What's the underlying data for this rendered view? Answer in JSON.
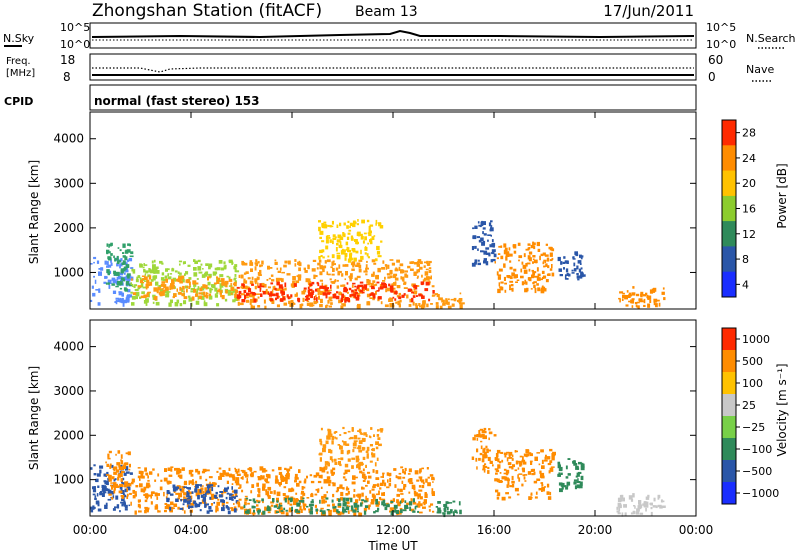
{
  "header": {
    "title": "Zhongshan Station (fitACF)",
    "beam": "Beam 13",
    "date": "17/Jun/2011"
  },
  "strips": {
    "nsky_label": "N.Sky",
    "nsearch_label": "N.Search",
    "count_ticks": [
      "10^5",
      "10^0"
    ],
    "freq_label_line1": "Freq.",
    "freq_label_line2": "[MHz]",
    "freq_ticks_left": [
      "18",
      "8"
    ],
    "nave_ticks_right": [
      "60",
      "0"
    ],
    "nave_label": "Nave",
    "cpid_label": "CPID",
    "cpid_text": "normal (fast stereo) 153"
  },
  "chart_data": [
    {
      "type": "heatmap",
      "name": "power",
      "ylabel": "Slant Range [km]",
      "ylim": [
        180,
        4600
      ],
      "yticks": [
        "1000",
        "2000",
        "3000",
        "4000"
      ],
      "xlim": [
        0,
        24
      ],
      "colorbar": {
        "label": "Power [dB]",
        "ticks": [
          "4",
          "8",
          "12",
          "16",
          "20",
          "24",
          "28"
        ],
        "colors": [
          "#1a2eff",
          "#2a56a8",
          "#2f8a5a",
          "#8ccc2e",
          "#ffc200",
          "#ff8c00",
          "#ff2a00"
        ]
      },
      "regions": [
        {
          "t0": 0.0,
          "t1": 1.6,
          "r0": 300,
          "r1": 1350,
          "color": "#5a8cff"
        },
        {
          "t0": 0.6,
          "t1": 1.6,
          "r0": 600,
          "r1": 1700,
          "color": "#30a06a"
        },
        {
          "t0": 1.6,
          "t1": 5.8,
          "r0": 300,
          "r1": 1300,
          "color": "#9fd83a"
        },
        {
          "t0": 1.6,
          "t1": 5.8,
          "r0": 450,
          "r1": 950,
          "color": "#ff9a10"
        },
        {
          "t0": 5.8,
          "t1": 13.6,
          "r0": 250,
          "r1": 1300,
          "color": "#ff9a10"
        },
        {
          "t0": 5.8,
          "t1": 13.6,
          "r0": 400,
          "r1": 800,
          "color": "#ff2a00"
        },
        {
          "t0": 9.0,
          "t1": 11.5,
          "r0": 1300,
          "r1": 2200,
          "color": "#ffd000"
        },
        {
          "t0": 13.6,
          "t1": 14.7,
          "r0": 250,
          "r1": 550,
          "color": "#ff9a10"
        },
        {
          "t0": 15.1,
          "t1": 16.0,
          "r0": 1200,
          "r1": 2200,
          "color": "#2a56a8"
        },
        {
          "t0": 16.0,
          "t1": 18.3,
          "r0": 600,
          "r1": 1700,
          "color": "#ff8c00"
        },
        {
          "t0": 18.5,
          "t1": 19.5,
          "r0": 800,
          "r1": 1500,
          "color": "#2a56a8"
        },
        {
          "t0": 20.8,
          "t1": 22.7,
          "r0": 250,
          "r1": 700,
          "color": "#ff8c00"
        }
      ]
    },
    {
      "type": "heatmap",
      "name": "velocity",
      "ylabel": "Slant Range [km]",
      "ylim": [
        180,
        4600
      ],
      "yticks": [
        "1000",
        "2000",
        "3000",
        "4000"
      ],
      "xlim": [
        0,
        24
      ],
      "xticks": [
        "00:00",
        "04:00",
        "08:00",
        "12:00",
        "16:00",
        "20:00",
        "00:00"
      ],
      "xlabel": "Time UT",
      "colorbar": {
        "label": "Velocity [m s⁻¹]",
        "ticks": [
          "1000",
          "500",
          "100",
          "25",
          "−25",
          "−100",
          "−500",
          "−1000"
        ],
        "colors": [
          "#1a2eff",
          "#2a56a8",
          "#2f8a5a",
          "#78d048",
          "#c8c8c8",
          "#ffc200",
          "#ff8c00",
          "#ff2a00"
        ]
      },
      "regions": [
        {
          "t0": 0.0,
          "t1": 1.6,
          "r0": 300,
          "r1": 1350,
          "color": "#2a56a8"
        },
        {
          "t0": 0.6,
          "t1": 1.6,
          "r0": 600,
          "r1": 1700,
          "color": "#ff8c00"
        },
        {
          "t0": 1.6,
          "t1": 5.8,
          "r0": 300,
          "r1": 1300,
          "color": "#ff8c00"
        },
        {
          "t0": 3.0,
          "t1": 5.8,
          "r0": 300,
          "r1": 900,
          "color": "#2a56a8"
        },
        {
          "t0": 5.8,
          "t1": 13.6,
          "r0": 250,
          "r1": 1300,
          "color": "#ff8c00"
        },
        {
          "t0": 6.0,
          "t1": 13.0,
          "r0": 280,
          "r1": 600,
          "color": "#2f8a5a"
        },
        {
          "t0": 9.0,
          "t1": 11.5,
          "r0": 1300,
          "r1": 2200,
          "color": "#ff9a10"
        },
        {
          "t0": 13.6,
          "t1": 14.7,
          "r0": 250,
          "r1": 550,
          "color": "#2f8a5a"
        },
        {
          "t0": 15.1,
          "t1": 16.0,
          "r0": 1200,
          "r1": 2200,
          "color": "#ff8c00"
        },
        {
          "t0": 16.0,
          "t1": 18.3,
          "r0": 600,
          "r1": 1700,
          "color": "#ff8c00"
        },
        {
          "t0": 18.5,
          "t1": 19.5,
          "r0": 800,
          "r1": 1500,
          "color": "#2f8a5a"
        },
        {
          "t0": 20.8,
          "t1": 22.7,
          "r0": 250,
          "r1": 700,
          "color": "#c8c8c8"
        }
      ]
    }
  ]
}
